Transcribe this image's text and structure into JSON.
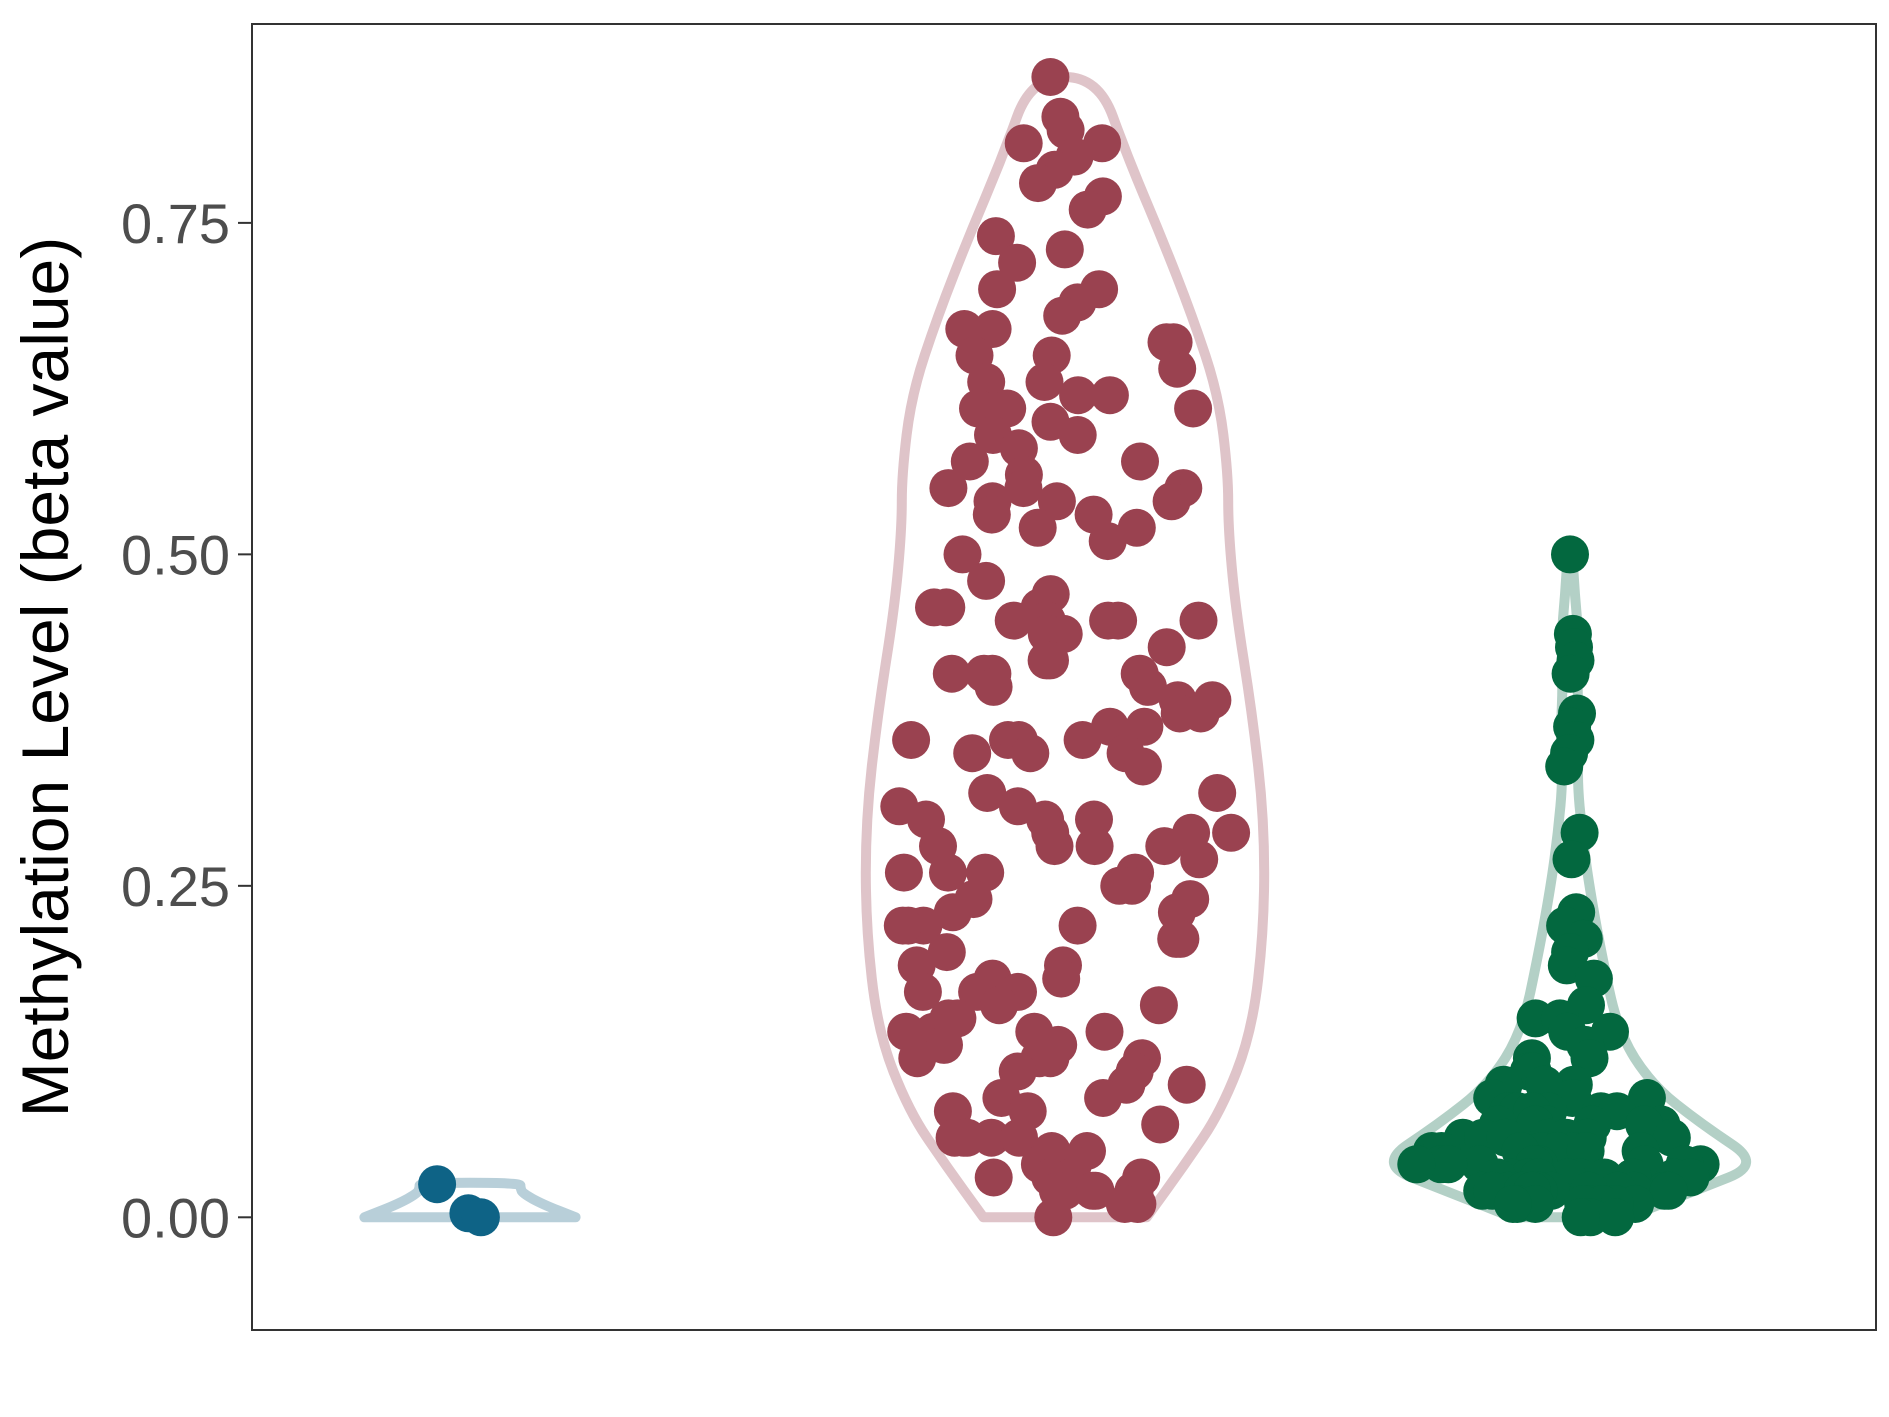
{
  "chart_data": {
    "type": "violin",
    "title": "",
    "xlabel": "",
    "ylabel": "Methylation Level (beta value)",
    "ylim": [
      -0.085,
      0.9
    ],
    "y_ticks": [
      "0.00",
      "0.25",
      "0.50",
      "0.75"
    ],
    "y_tick_values": [
      0,
      0.25,
      0.5,
      0.75
    ],
    "grid": false,
    "legend": "none",
    "groups": [
      {
        "violin_color": "#b8cfd9",
        "point_color": "#0e6386",
        "values": [
          0.003,
          0.0,
          0.025
        ],
        "violin": [
          [
            0.0,
            0.44
          ],
          [
            0.01,
            0.3
          ],
          [
            0.018,
            0.22
          ],
          [
            0.022,
            0.21
          ],
          [
            0.026,
            0.21
          ]
        ]
      },
      {
        "violin_color": "#dfc4c9",
        "point_color": "#9a4250",
        "values": [
          0.86,
          0.83,
          0.82,
          0.81,
          0.81,
          0.8,
          0.79,
          0.78,
          0.77,
          0.76,
          0.74,
          0.73,
          0.72,
          0.7,
          0.7,
          0.69,
          0.68,
          0.67,
          0.67,
          0.66,
          0.66,
          0.65,
          0.65,
          0.64,
          0.63,
          0.63,
          0.62,
          0.62,
          0.61,
          0.61,
          0.61,
          0.6,
          0.59,
          0.59,
          0.58,
          0.57,
          0.57,
          0.56,
          0.55,
          0.55,
          0.55,
          0.54,
          0.54,
          0.54,
          0.53,
          0.53,
          0.52,
          0.52,
          0.51,
          0.5,
          0.48,
          0.47,
          0.46,
          0.46,
          0.46,
          0.45,
          0.45,
          0.45,
          0.45,
          0.45,
          0.44,
          0.44,
          0.43,
          0.42,
          0.42,
          0.41,
          0.41,
          0.41,
          0.41,
          0.4,
          0.4,
          0.39,
          0.39,
          0.38,
          0.38,
          0.37,
          0.37,
          0.36,
          0.36,
          0.36,
          0.36,
          0.35,
          0.35,
          0.35,
          0.34,
          0.32,
          0.32,
          0.31,
          0.31,
          0.3,
          0.3,
          0.3,
          0.29,
          0.29,
          0.29,
          0.28,
          0.28,
          0.28,
          0.28,
          0.27,
          0.26,
          0.26,
          0.26,
          0.26,
          0.25,
          0.25,
          0.24,
          0.24,
          0.23,
          0.23,
          0.22,
          0.22,
          0.22,
          0.22,
          0.21,
          0.21,
          0.2,
          0.19,
          0.19,
          0.18,
          0.18,
          0.17,
          0.17,
          0.17,
          0.16,
          0.16,
          0.15,
          0.15,
          0.14,
          0.14,
          0.14,
          0.14,
          0.13,
          0.13,
          0.12,
          0.12,
          0.12,
          0.12,
          0.11,
          0.11,
          0.1,
          0.1,
          0.09,
          0.09,
          0.08,
          0.08,
          0.07,
          0.06,
          0.06,
          0.06,
          0.06,
          0.06,
          0.05,
          0.05,
          0.04,
          0.04,
          0.03,
          0.03,
          0.03,
          0.03,
          0.02,
          0.02,
          0.02,
          0.02,
          0.02,
          0.02,
          0.01,
          0.01,
          0.0
        ],
        "violin": [
          [
            0.0,
            0.34
          ],
          [
            0.04,
            0.5
          ],
          [
            0.08,
            0.65
          ],
          [
            0.14,
            0.78
          ],
          [
            0.22,
            0.83
          ],
          [
            0.3,
            0.83
          ],
          [
            0.38,
            0.78
          ],
          [
            0.46,
            0.71
          ],
          [
            0.52,
            0.68
          ],
          [
            0.56,
            0.68
          ],
          [
            0.62,
            0.64
          ],
          [
            0.68,
            0.53
          ],
          [
            0.74,
            0.4
          ],
          [
            0.8,
            0.26
          ],
          [
            0.86,
            0.14
          ]
        ]
      },
      {
        "violin_color": "#b3d0c6",
        "point_color": "#03683f",
        "values": [
          0.5,
          0.44,
          0.43,
          0.42,
          0.41,
          0.38,
          0.37,
          0.36,
          0.35,
          0.34,
          0.29,
          0.27,
          0.23,
          0.22,
          0.21,
          0.21,
          0.2,
          0.19,
          0.18,
          0.16,
          0.15,
          0.15,
          0.14,
          0.14,
          0.13,
          0.12,
          0.12,
          0.11,
          0.11,
          0.1,
          0.1,
          0.1,
          0.09,
          0.09,
          0.09,
          0.08,
          0.08,
          0.08,
          0.08,
          0.08,
          0.08,
          0.07,
          0.07,
          0.07,
          0.07,
          0.07,
          0.07,
          0.06,
          0.06,
          0.06,
          0.06,
          0.06,
          0.06,
          0.06,
          0.05,
          0.05,
          0.05,
          0.05,
          0.05,
          0.05,
          0.05,
          0.05,
          0.04,
          0.04,
          0.04,
          0.04,
          0.04,
          0.04,
          0.04,
          0.04,
          0.04,
          0.04,
          0.03,
          0.03,
          0.03,
          0.03,
          0.03,
          0.03,
          0.03,
          0.03,
          0.03,
          0.03,
          0.03,
          0.02,
          0.02,
          0.02,
          0.02,
          0.02,
          0.02,
          0.02,
          0.02,
          0.02,
          0.02,
          0.02,
          0.02,
          0.01,
          0.01,
          0.01,
          0.01,
          0.01,
          0.01,
          0.01,
          0.01,
          0.0,
          0.0,
          0.0
        ],
        "violin": [
          [
            0.0,
            0.24
          ],
          [
            0.02,
            0.52
          ],
          [
            0.04,
            0.8
          ],
          [
            0.07,
            0.55
          ],
          [
            0.1,
            0.34
          ],
          [
            0.14,
            0.2
          ],
          [
            0.2,
            0.13
          ],
          [
            0.25,
            0.08
          ],
          [
            0.29,
            0.05
          ],
          [
            0.33,
            0.03
          ],
          [
            0.36,
            0.04
          ],
          [
            0.4,
            0.03
          ],
          [
            0.44,
            0.035
          ],
          [
            0.47,
            0.02
          ],
          [
            0.5,
            0.01
          ]
        ]
      }
    ]
  }
}
